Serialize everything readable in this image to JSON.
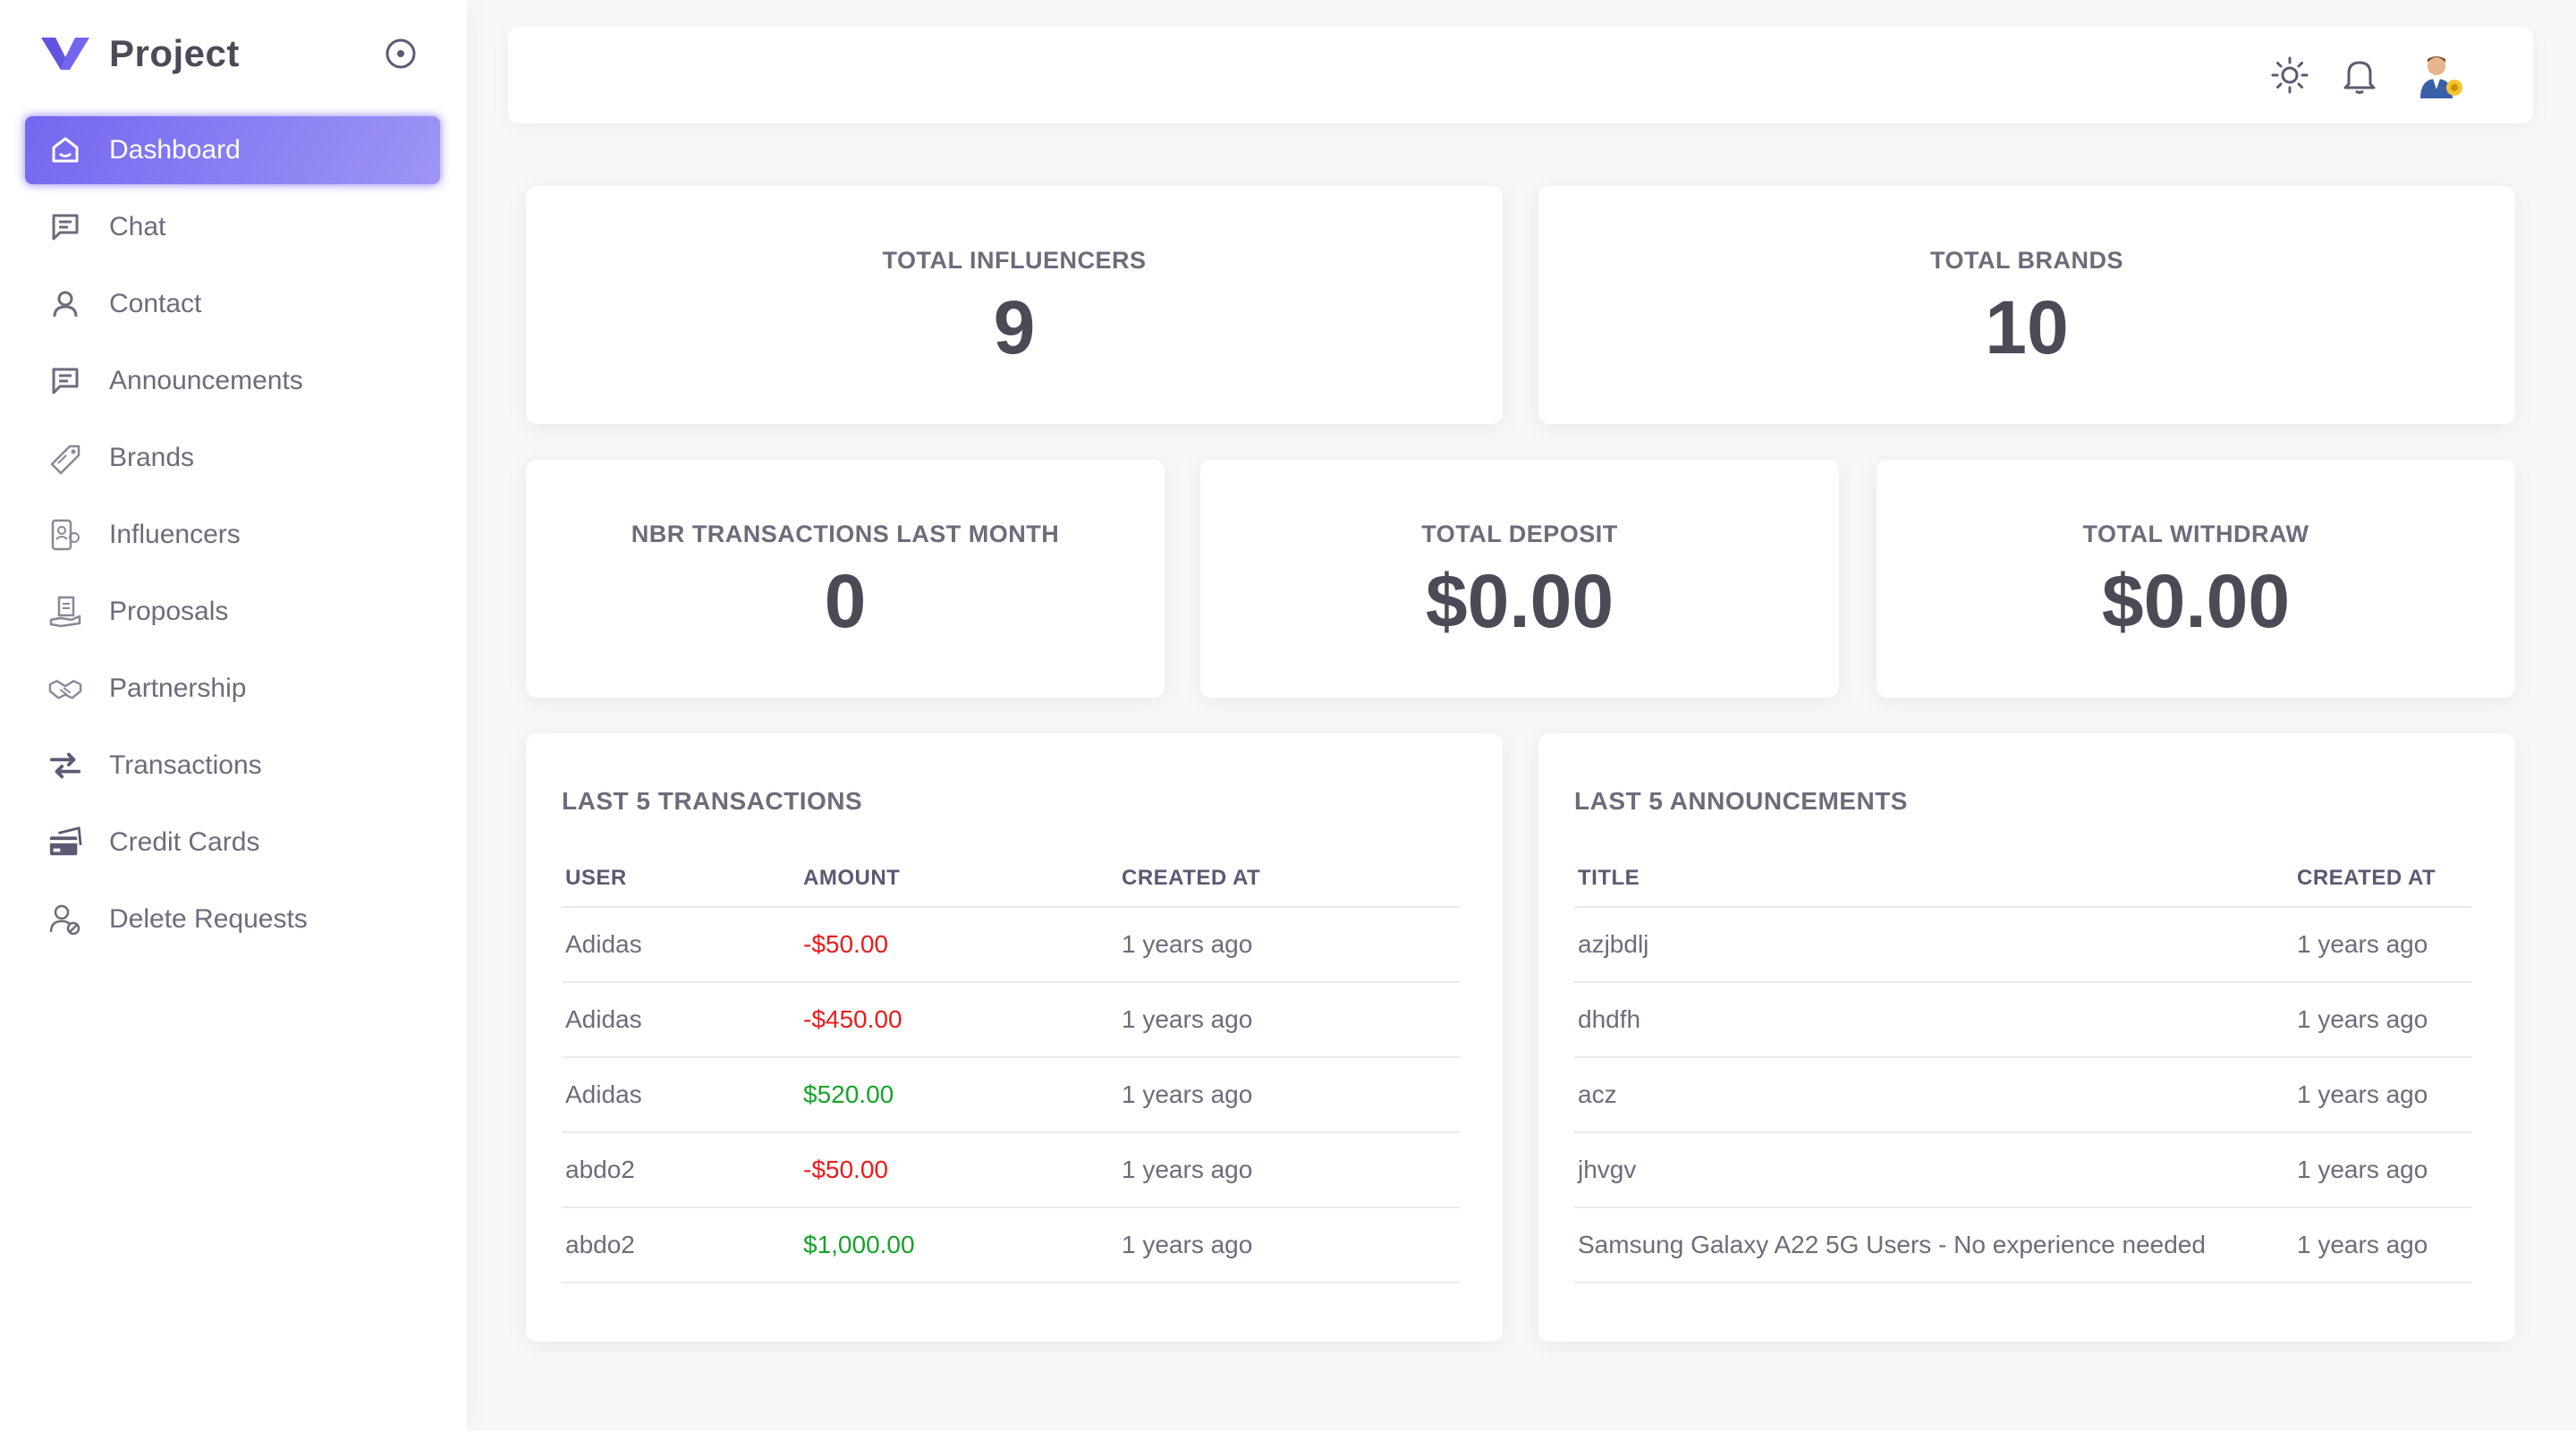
{
  "app": {
    "name": "Project",
    "accent": "#7367f0"
  },
  "sidebar": {
    "items": [
      {
        "label": "Dashboard",
        "icon": "home-icon",
        "active": true
      },
      {
        "label": "Chat",
        "icon": "chat-icon"
      },
      {
        "label": "Contact",
        "icon": "user-icon"
      },
      {
        "label": "Announcements",
        "icon": "message-icon"
      },
      {
        "label": "Brands",
        "icon": "tag-icon"
      },
      {
        "label": "Influencers",
        "icon": "influencer-icon"
      },
      {
        "label": "Proposals",
        "icon": "hand-document-icon"
      },
      {
        "label": "Partnership",
        "icon": "handshake-icon"
      },
      {
        "label": "Transactions",
        "icon": "arrows-exchange-icon"
      },
      {
        "label": "Credit Cards",
        "icon": "credit-card-icon"
      },
      {
        "label": "Delete Requests",
        "icon": "user-delete-icon"
      }
    ]
  },
  "topbar": {
    "icons": [
      "sun-icon",
      "bell-icon",
      "avatar"
    ]
  },
  "stats": {
    "total_influencers": {
      "title": "TOTAL INFLUENCERS",
      "value": "9"
    },
    "total_brands": {
      "title": "TOTAL BRANDS",
      "value": "10"
    },
    "nbr_transactions": {
      "title": "NBR TRANSACTIONS LAST MONTH",
      "value": "0"
    },
    "total_deposit": {
      "title": "TOTAL DEPOSIT",
      "value": "$0.00"
    },
    "total_withdraw": {
      "title": "TOTAL WITHDRAW",
      "value": "$0.00"
    }
  },
  "transactions": {
    "title": "LAST 5 TRANSACTIONS",
    "columns": [
      "USER",
      "AMOUNT",
      "CREATED AT"
    ],
    "rows": [
      {
        "user": "Adidas",
        "amount": "-$50.00",
        "created_at": "1 years ago",
        "sign": "neg"
      },
      {
        "user": "Adidas",
        "amount": "-$450.00",
        "created_at": "1 years ago",
        "sign": "neg"
      },
      {
        "user": "Adidas",
        "amount": "$520.00",
        "created_at": "1 years ago",
        "sign": "pos"
      },
      {
        "user": "abdo2",
        "amount": "-$50.00",
        "created_at": "1 years ago",
        "sign": "neg"
      },
      {
        "user": "abdo2",
        "amount": "$1,000.00",
        "created_at": "1 years ago",
        "sign": "pos"
      }
    ]
  },
  "announcements": {
    "title": "LAST 5 ANNOUNCEMENTS",
    "columns": [
      "TITLE",
      "CREATED AT"
    ],
    "rows": [
      {
        "title": "azjbdlj",
        "created_at": "1 years ago"
      },
      {
        "title": "dhdfh",
        "created_at": "1 years ago"
      },
      {
        "title": "acz",
        "created_at": "1 years ago"
      },
      {
        "title": "jhvgv",
        "created_at": "1 years ago"
      },
      {
        "title": "Samsung Galaxy A22 5G Users - No experience needed",
        "created_at": "1 years ago"
      }
    ]
  },
  "colors": {
    "negative": "#ea1b1b",
    "positive": "#16a32a"
  }
}
